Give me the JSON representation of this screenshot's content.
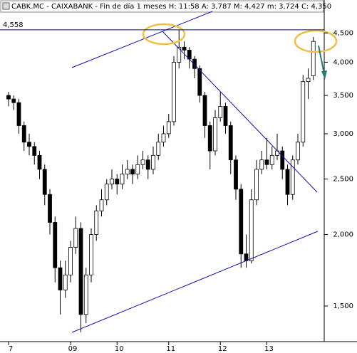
{
  "chart_data": {
    "type": "candlestick",
    "title": "CABK.MC - CAIXABANK - Fin de día 1 meses  H: 11:58  A: 3,787  M: 4,427  m: 3,724  C: 4,350",
    "log_scale": true,
    "up_color": "#ffffff",
    "down_color": "#000000",
    "categories": [
      "7",
      null,
      null,
      null,
      null,
      null,
      null,
      null,
      null,
      null,
      null,
      null,
      "09",
      null,
      null,
      null,
      null,
      null,
      null,
      null,
      null,
      "10",
      null,
      null,
      null,
      null,
      null,
      null,
      null,
      null,
      null,
      "11",
      null,
      null,
      null,
      null,
      null,
      null,
      null,
      null,
      null,
      "12",
      null,
      null,
      null,
      null,
      null,
      null,
      null,
      null,
      "13",
      null,
      null,
      null,
      null,
      null,
      null,
      null,
      null,
      null
    ],
    "open": [
      3500,
      3450,
      3400,
      3100,
      2900,
      2850,
      2750,
      2600,
      2350,
      2100,
      1750,
      1600,
      1700,
      1900,
      2050,
      1450,
      1700,
      2000,
      2200,
      2300,
      2450,
      2500,
      2450,
      2550,
      2600,
      2550,
      2650,
      2700,
      2600,
      2750,
      2900,
      3000,
      3150,
      4000,
      4250,
      4200,
      4050,
      3900,
      3500,
      3100,
      2800,
      3200,
      3350,
      3100,
      2700,
      2400,
      1850,
      1800,
      2300,
      2600,
      2700,
      2650,
      2750,
      2800,
      2600,
      2350,
      2700,
      2900,
      3700,
      3787
    ],
    "high": [
      3550,
      3500,
      3450,
      3150,
      3000,
      2900,
      2800,
      2650,
      2400,
      2150,
      1800,
      1800,
      1950,
      2150,
      2100,
      1750,
      2050,
      2250,
      2400,
      2500,
      2600,
      2550,
      2650,
      2700,
      2650,
      2750,
      2800,
      2750,
      2850,
      3000,
      3100,
      3250,
      4100,
      4558,
      4350,
      4250,
      4100,
      3950,
      3550,
      3150,
      3300,
      3550,
      3400,
      3150,
      2750,
      2450,
      2000,
      2400,
      2700,
      2800,
      2950,
      2850,
      3000,
      2850,
      2650,
      2750,
      3000,
      3800,
      3900,
      4427
    ],
    "low": [
      3350,
      3300,
      3000,
      2800,
      2750,
      2650,
      2500,
      2250,
      2000,
      1650,
      1450,
      1550,
      1650,
      1850,
      1350,
      1400,
      1650,
      1950,
      2150,
      2250,
      2400,
      2350,
      2400,
      2500,
      2450,
      2500,
      2600,
      2500,
      2550,
      2700,
      2850,
      2950,
      3100,
      3900,
      4050,
      3900,
      3750,
      3400,
      2950,
      2600,
      2750,
      3150,
      3000,
      2550,
      2300,
      1750,
      1750,
      1780,
      2250,
      2550,
      2600,
      2600,
      2700,
      2500,
      2250,
      2300,
      2650,
      2850,
      3450,
      3724
    ],
    "close": [
      3450,
      3400,
      3100,
      2900,
      2850,
      2750,
      2600,
      2350,
      2100,
      1750,
      1600,
      1700,
      1900,
      2050,
      1450,
      1700,
      2000,
      2200,
      2300,
      2450,
      2500,
      2450,
      2550,
      2600,
      2550,
      2650,
      2700,
      2600,
      2750,
      2900,
      3000,
      3150,
      4000,
      4250,
      4200,
      4050,
      3900,
      3500,
      3100,
      2800,
      3200,
      3350,
      3100,
      2700,
      2400,
      1850,
      1800,
      2300,
      2600,
      2700,
      2650,
      2750,
      2800,
      2600,
      2350,
      2700,
      2900,
      3700,
      3750,
      4350
    ],
    "ylim": [
      1300,
      4880
    ],
    "yticks": [
      {
        "value": 1500,
        "label": "1,500"
      },
      {
        "value": 2000,
        "label": "2,000"
      },
      {
        "value": 2500,
        "label": "2,500"
      },
      {
        "value": 3000,
        "label": "3,000"
      },
      {
        "value": 3500,
        "label": "3,500"
      },
      {
        "value": 4000,
        "label": "4,000"
      },
      {
        "value": 4500,
        "label": "4,500"
      }
    ],
    "reference_line": {
      "value": 4558,
      "label": "4,558",
      "color": "#00008b"
    }
  }
}
